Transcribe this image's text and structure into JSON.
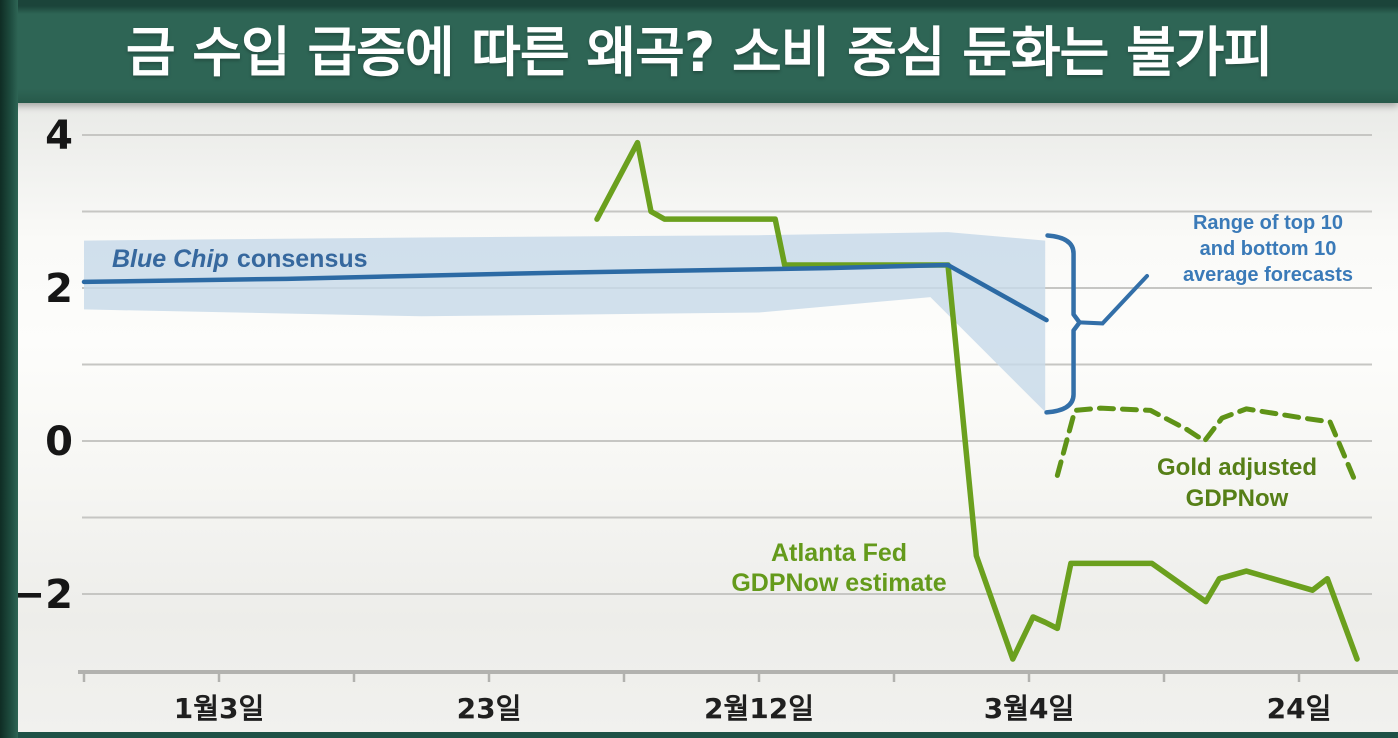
{
  "title_bar": {
    "text": "금 수입 급증에 따른 왜곡? 소비 중심 둔화는 불가피"
  },
  "colors": {
    "title_bar_bg": "#2e6555",
    "title_text": "#ffffff",
    "edge_strip": "#1d4a3d",
    "bottom_strip": "#1d5146",
    "gridline": "#c6c6c3",
    "axis": "#b2b2af",
    "gdpnow_green": "#6ba01e",
    "gold_dashed_green": "#5f9317",
    "blue_line": "#2c6aa4",
    "band": "#c7d9e9",
    "bracket": "#336fa8",
    "blue_text": "#3a7ab8",
    "blue_chip_text": "#36689e",
    "atlanta_text": "#649a1b",
    "gold_text": "#567f17",
    "y_label": "#161616",
    "x_label": "#1f1f1f"
  },
  "annotations": {
    "blue_chip": {
      "italic": "Blue Chip",
      "rest": "consensus"
    },
    "range": {
      "line1": "Range of top 10",
      "line2": "and bottom 10",
      "line3": "average forecasts"
    },
    "gold": {
      "line1": "Gold adjusted",
      "line2": "GDPNow"
    },
    "atlanta": {
      "line1": "Atlanta Fed",
      "line2": "GDPNow estimate"
    }
  },
  "chart_data": {
    "type": "line",
    "title": "금 수입 급증에 따른 왜곡? 소비 중심 둔화는 불가피",
    "x_unit": "days since Jan 3 (1월3일); ticks every 10 days",
    "x_axis": {
      "labeled_ticks": [
        {
          "day": 0,
          "label": "1월3일"
        },
        {
          "day": 20,
          "label": "23일"
        },
        {
          "day": 40,
          "label": "2월12일"
        },
        {
          "day": 60,
          "label": "3월4일"
        },
        {
          "day": 80,
          "label": "24일"
        }
      ],
      "minor_tick_days": [
        -10,
        10,
        30,
        50,
        70
      ],
      "range": [
        -10,
        87.5
      ]
    },
    "y_axis": {
      "gridline_values": [
        4,
        3,
        2,
        1,
        0,
        -1,
        -2
      ],
      "labeled_values": [
        {
          "value": 4,
          "label": "4"
        },
        {
          "value": 2,
          "label": "2"
        },
        {
          "value": 0,
          "label": "0"
        },
        {
          "value": -2,
          "label": "−2"
        }
      ],
      "range": [
        -3.05,
        4.35
      ],
      "grid": true
    },
    "series": [
      {
        "name": "Atlanta Fed GDPNow estimate",
        "style": "solid",
        "color_key": "gdpnow_green",
        "points": [
          {
            "d": 28.0,
            "v": 2.9
          },
          {
            "d": 31.0,
            "v": 3.9
          },
          {
            "d": 32.0,
            "v": 3.0
          },
          {
            "d": 33.0,
            "v": 2.9
          },
          {
            "d": 41.2,
            "v": 2.9
          },
          {
            "d": 41.9,
            "v": 2.3
          },
          {
            "d": 54.0,
            "v": 2.3
          },
          {
            "d": 56.1,
            "v": -1.5
          },
          {
            "d": 58.8,
            "v": -2.85
          },
          {
            "d": 60.3,
            "v": -2.3
          },
          {
            "d": 61.2,
            "v": -2.37
          },
          {
            "d": 62.1,
            "v": -2.45
          },
          {
            "d": 63.1,
            "v": -1.6
          },
          {
            "d": 69.1,
            "v": -1.6
          },
          {
            "d": 73.1,
            "v": -2.1
          },
          {
            "d": 74.1,
            "v": -1.8
          },
          {
            "d": 76.1,
            "v": -1.7
          },
          {
            "d": 81.0,
            "v": -1.95
          },
          {
            "d": 82.1,
            "v": -1.8
          },
          {
            "d": 84.3,
            "v": -2.85
          }
        ]
      },
      {
        "name": "Blue Chip consensus",
        "style": "solid",
        "color_key": "blue_line",
        "points": [
          {
            "d": -10.0,
            "v": 2.08
          },
          {
            "d": 5.0,
            "v": 2.12
          },
          {
            "d": 25.0,
            "v": 2.2
          },
          {
            "d": 45.0,
            "v": 2.26
          },
          {
            "d": 54.0,
            "v": 2.3
          },
          {
            "d": 61.3,
            "v": 1.58
          }
        ]
      },
      {
        "name": "Gold adjusted GDPNow",
        "style": "dashed",
        "color_key": "gold_dashed_green",
        "points": [
          {
            "d": 62.1,
            "v": -0.45
          },
          {
            "d": 63.4,
            "v": 0.4
          },
          {
            "d": 65.3,
            "v": 0.43
          },
          {
            "d": 69.0,
            "v": 0.4
          },
          {
            "d": 71.7,
            "v": 0.15
          },
          {
            "d": 73.0,
            "v": 0.0
          },
          {
            "d": 74.3,
            "v": 0.3
          },
          {
            "d": 76.1,
            "v": 0.42
          },
          {
            "d": 80.3,
            "v": 0.3
          },
          {
            "d": 82.3,
            "v": 0.25
          },
          {
            "d": 84.1,
            "v": -0.5
          }
        ]
      }
    ],
    "band": {
      "name": "Range of top 10 and bottom 10 average forecasts",
      "color_key": "band",
      "top": [
        {
          "d": -10.0,
          "v": 2.62
        },
        {
          "d": 15.0,
          "v": 2.66
        },
        {
          "d": 40.0,
          "v": 2.69
        },
        {
          "d": 54.0,
          "v": 2.73
        },
        {
          "d": 61.2,
          "v": 2.62
        }
      ],
      "bottom": [
        {
          "d": -10.0,
          "v": 1.72
        },
        {
          "d": 15.0,
          "v": 1.63
        },
        {
          "d": 40.0,
          "v": 1.68
        },
        {
          "d": 52.7,
          "v": 1.88
        },
        {
          "d": 61.2,
          "v": 0.38
        }
      ]
    },
    "bracket": {
      "d": 63.3,
      "top": 2.66,
      "bottom": 0.4,
      "mid": 1.55
    },
    "legend_position": "annotated-on-chart"
  }
}
